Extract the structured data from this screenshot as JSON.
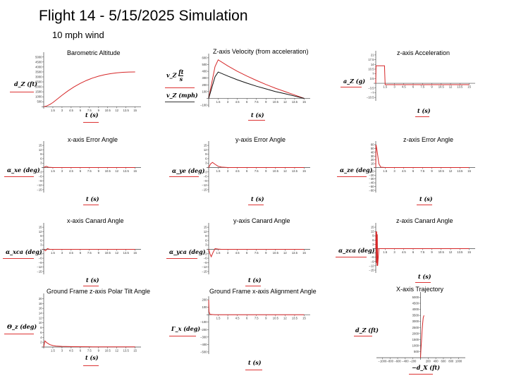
{
  "page": {
    "title": "Flight 14 - 5/15/2025  Simulation",
    "subtitle": "10 mph wind"
  },
  "colors": {
    "primary": "#d62728",
    "secondary": "#111111",
    "axis": "#444444"
  },
  "labels": {
    "alt_y": "d_Z  (ft)",
    "alt_x": "t  (s)",
    "vel_y1_num": "ft",
    "vel_y1_den": "s",
    "vel_y1_pre": "v_Z",
    "vel_y2": "v_Z  (mph)",
    "vel_x": "t  (s)",
    "acc_y": "a_Z  (g)",
    "acc_x": "t  (s)",
    "xerr_y": "α_xe  (deg)",
    "xerr_x": "t  (s)",
    "yerr_y": "α_ye  (deg)",
    "yerr_x": "t  (s)",
    "zerr_y": "α_ze  (deg)",
    "zerr_x": "t  (s)",
    "xcan_y": "α_xca  (deg)",
    "xcan_x": "t  (s)",
    "ycan_y": "α_yca  (deg)",
    "ycan_x": "t  (s)",
    "zcan_y": "α_zca  (deg)",
    "zcan_x": "t  (s)",
    "tilt_y": "Θ_z  (deg)",
    "tilt_x": "t  (s)",
    "align_y": "Γ_x  (deg)",
    "align_x": "t  (s)",
    "traj_y": "d_Z  (ft)",
    "traj_x": "−d_X  (ft)"
  },
  "chart_data": [
    {
      "id": "alt",
      "type": "line",
      "title": "Barometric Altitude",
      "xticks": [
        1.5,
        3,
        4.5,
        6,
        7.5,
        9,
        10.5,
        12,
        13.5,
        15
      ],
      "yticks": [
        500,
        1000,
        1500,
        2000,
        2500,
        3000,
        3500,
        4000,
        4500,
        5000
      ],
      "xlim": [
        0,
        15.5
      ],
      "ylim": [
        -50,
        5200
      ],
      "series": [
        {
          "color": "#d62728",
          "x": [
            0,
            0.5,
            1,
            1.5,
            2,
            3,
            4,
            5,
            6,
            7,
            8,
            9,
            10,
            11,
            12,
            13,
            14,
            15
          ],
          "y": [
            0,
            80,
            220,
            420,
            660,
            1150,
            1600,
            2000,
            2350,
            2640,
            2880,
            3070,
            3220,
            3330,
            3410,
            3460,
            3490,
            3500
          ]
        }
      ]
    },
    {
      "id": "vel",
      "type": "line",
      "title": "Z-axis Velocity (from acceleration)",
      "xticks": [
        1.5,
        3,
        4.5,
        6,
        7.5,
        9,
        10.5,
        12,
        13.5,
        15
      ],
      "yticks": [
        -100,
        100,
        200,
        300,
        400,
        500,
        600
      ],
      "xlim": [
        0,
        15.5
      ],
      "ylim": [
        -110,
        620
      ],
      "series": [
        {
          "color": "#d62728",
          "x": [
            0,
            1,
            1.5,
            3,
            4.5,
            6,
            7.5,
            9,
            10.5,
            12,
            13.5,
            15
          ],
          "y": [
            0,
            470,
            570,
            480,
            400,
            330,
            265,
            205,
            150,
            100,
            50,
            0
          ]
        },
        {
          "color": "#111111",
          "x": [
            0,
            1,
            1.5,
            3,
            4.5,
            6,
            7.5,
            9,
            10.5,
            12,
            13.5,
            15
          ],
          "y": [
            0,
            320,
            390,
            330,
            275,
            225,
            180,
            140,
            100,
            68,
            34,
            0
          ]
        }
      ]
    },
    {
      "id": "acc",
      "type": "line",
      "title": "z-axis Acceleration",
      "xticks": [
        1.5,
        3,
        4.5,
        6,
        7.5,
        9,
        10.5,
        12,
        13.5,
        15
      ],
      "yticks": [
        -10.5,
        -7,
        -3.5,
        3.5,
        7,
        10.5,
        14,
        17.5,
        21
      ],
      "ytick_labels": [
        "−10.5",
        "−7",
        "−3.5",
        "3.5",
        "7",
        "10.5",
        "14",
        "17.5",
        "21"
      ],
      "xlim": [
        0,
        15.5
      ],
      "ylim": [
        -12,
        22
      ],
      "series": [
        {
          "color": "#d62728",
          "x": [
            0,
            0.05,
            1.4,
            1.5,
            15
          ],
          "y": [
            0,
            13,
            13,
            -1,
            -1
          ]
        }
      ]
    },
    {
      "id": "xerr",
      "type": "line",
      "title": "x-axis Error Angle",
      "xticks": [
        1.5,
        3,
        4.5,
        6,
        7.5,
        9,
        10.5,
        12,
        13.5,
        15
      ],
      "yticks": [
        -15,
        -12,
        -9,
        -6,
        -3,
        3,
        6,
        9,
        12,
        15
      ],
      "xlim": [
        0,
        15.5
      ],
      "ylim": [
        -16,
        16
      ],
      "series": [
        {
          "color": "#d62728",
          "x": [
            0,
            0.4,
            0.8,
            1.5,
            15
          ],
          "y": [
            0,
            0.8,
            0.2,
            0,
            0
          ]
        }
      ]
    },
    {
      "id": "yerr",
      "type": "line",
      "title": "y-axis Error Angle",
      "xticks": [
        1.5,
        3,
        4.5,
        6,
        7.5,
        9,
        10.5,
        12,
        13.5,
        15
      ],
      "yticks": [
        -15,
        -12,
        -9,
        -6,
        -3,
        3,
        6,
        9,
        12,
        15
      ],
      "xlim": [
        0,
        15.5
      ],
      "ylim": [
        -16,
        16
      ],
      "series": [
        {
          "color": "#d62728",
          "x": [
            0,
            0.3,
            0.6,
            1,
            1.5,
            2,
            3,
            15
          ],
          "y": [
            0,
            2.5,
            3.5,
            2.2,
            0.8,
            0.3,
            0,
            0
          ]
        }
      ]
    },
    {
      "id": "zerr",
      "type": "line",
      "title": "z-axis Error Angle",
      "xticks": [
        1.5,
        3,
        4.5,
        6,
        7.5,
        9,
        10.5,
        12,
        13.5,
        15
      ],
      "yticks": [
        -60,
        -50,
        -40,
        -30,
        -20,
        -10,
        10,
        20,
        30,
        40,
        50,
        60
      ],
      "xlim": [
        0,
        15.5
      ],
      "ylim": [
        -62,
        62
      ],
      "series": [
        {
          "color": "#d62728",
          "x": [
            0,
            0.05,
            0.2,
            0.5,
            0.8,
            1.5,
            15
          ],
          "y": [
            0,
            60,
            45,
            10,
            1,
            0,
            0
          ]
        }
      ]
    },
    {
      "id": "xcan",
      "type": "line",
      "title": "x-axis Canard Angle",
      "xticks": [
        1.5,
        3,
        4.5,
        6,
        7.5,
        9,
        10.5,
        12,
        13.5,
        15
      ],
      "yticks": [
        -15,
        -12,
        -9,
        -6,
        -3,
        3,
        6,
        9,
        12,
        15
      ],
      "xlim": [
        0,
        15.5
      ],
      "ylim": [
        -16,
        16
      ],
      "series": [
        {
          "color": "#d62728",
          "x": [
            0,
            0.3,
            0.6,
            1,
            1.5,
            15
          ],
          "y": [
            0,
            -1,
            0.5,
            0,
            0,
            0
          ]
        }
      ]
    },
    {
      "id": "ycan",
      "type": "line",
      "title": "y-axis Canard Angle",
      "xticks": [
        1.5,
        3,
        4.5,
        6,
        7.5,
        9,
        10.5,
        12,
        13.5,
        15
      ],
      "yticks": [
        -15,
        -12,
        -9,
        -6,
        -3,
        3,
        6,
        9,
        12,
        15
      ],
      "xlim": [
        0,
        15.5
      ],
      "ylim": [
        -16,
        16
      ],
      "series": [
        {
          "color": "#d62728",
          "x": [
            0,
            0.2,
            0.4,
            0.7,
            1,
            1.5,
            2,
            15
          ],
          "y": [
            0,
            -3,
            -5,
            -2,
            0.5,
            0.2,
            0,
            0
          ]
        }
      ]
    },
    {
      "id": "zcan",
      "type": "line",
      "title": "z-axis Canard Angle",
      "xticks": [
        1.5,
        3,
        4.5,
        6,
        7.5,
        9,
        10.5,
        12,
        13.5,
        15
      ],
      "yticks": [
        -15,
        -12,
        -9,
        -6,
        -3,
        3,
        6,
        9,
        12,
        15
      ],
      "xlim": [
        0,
        15.5
      ],
      "ylim": [
        -16,
        16
      ],
      "series": [
        {
          "color": "#d62728",
          "x": [
            0,
            0.05,
            0.1,
            0.15,
            0.2,
            0.25,
            0.3,
            0.5,
            1,
            15
          ],
          "y": [
            0,
            12,
            -10,
            12,
            -12,
            10,
            -12,
            0,
            0,
            0
          ]
        }
      ]
    },
    {
      "id": "tilt",
      "type": "line",
      "title": "Ground Frame z-axis Polar Tilt Angle",
      "xticks": [
        1.5,
        3,
        4.5,
        6,
        7.5,
        9,
        10.5,
        12,
        13.5,
        15
      ],
      "yticks": [
        2,
        4,
        6,
        8,
        10,
        12,
        14,
        16,
        18,
        20
      ],
      "xlim": [
        0,
        15.5
      ],
      "ylim": [
        0,
        21
      ],
      "series": [
        {
          "color": "#d62728",
          "x": [
            0,
            0.2,
            0.5,
            1,
            1.5,
            2,
            3,
            5,
            8,
            15
          ],
          "y": [
            0,
            2.5,
            1.8,
            1,
            0.6,
            0.4,
            0.25,
            0.15,
            0.1,
            0.05
          ]
        }
      ]
    },
    {
      "id": "align",
      "type": "line",
      "title": "Ground Frame x-axis Alignment Angle",
      "xticks": [
        1.5,
        3,
        4.5,
        6,
        7.5,
        9,
        10.5,
        12,
        13.5,
        15
      ],
      "yticks": [
        -500,
        -400,
        -300,
        -200,
        -100,
        100,
        200
      ],
      "xlim": [
        0,
        15.5
      ],
      "ylim": [
        -510,
        210
      ],
      "series": [
        {
          "color": "#d62728",
          "x": [
            0,
            0.05,
            0.2,
            1,
            15
          ],
          "y": [
            200,
            40,
            5,
            0,
            0
          ]
        }
      ]
    },
    {
      "id": "traj",
      "type": "line",
      "title": "X-axis Trajectory",
      "xticks": [
        -1000,
        -800,
        -600,
        -400,
        -200,
        200,
        400,
        600,
        800,
        1000
      ],
      "yticks": [
        500,
        1000,
        1500,
        2000,
        2500,
        3000,
        3500,
        4000,
        4500,
        5000
      ],
      "ytick_labels": [
        "500",
        "1000",
        "1500",
        "2000",
        "2500",
        "3000",
        "3500",
        "4000",
        "4500",
        "5000"
      ],
      "xlim": [
        -1100,
        1100
      ],
      "ylim": [
        -50,
        5200
      ],
      "series": [
        {
          "color": "#d62728",
          "x": [
            0,
            10,
            25,
            40,
            55,
            70,
            90
          ],
          "y": [
            0,
            600,
            1400,
            2200,
            2800,
            3300,
            3500
          ]
        }
      ]
    }
  ]
}
